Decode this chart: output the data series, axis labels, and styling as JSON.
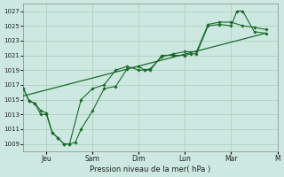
{
  "bg_color": "#cce8e0",
  "grid_color": "#aaccbb",
  "line_color": "#1a6b2a",
  "xlabel": "Pression niveau de la mer( hPa )",
  "ylim": [
    1008.0,
    1028.0
  ],
  "yticks": [
    1009,
    1011,
    1013,
    1015,
    1017,
    1019,
    1021,
    1023,
    1025,
    1027
  ],
  "xlim": [
    0,
    22
  ],
  "xtick_positions": [
    2.0,
    6.0,
    10.0,
    14.0,
    18.0,
    22.0
  ],
  "xtick_labels": [
    "Jeu",
    "Sam",
    "Dim",
    "Lun",
    "Mar",
    "M"
  ],
  "series": [
    {
      "x": [
        0,
        0.5,
        1,
        1.5,
        2,
        2.5,
        3,
        3.5,
        4,
        4.5,
        5,
        6,
        7,
        8,
        9,
        10,
        10.5,
        11,
        12,
        13,
        14,
        14.5,
        15,
        16,
        17,
        18,
        18.5,
        19,
        20,
        21
      ],
      "y": [
        1016.5,
        1014.8,
        1014.5,
        1013.0,
        1013.0,
        1010.5,
        1009.8,
        1009.0,
        1009.0,
        1009.2,
        1011.0,
        1013.5,
        1016.5,
        1016.8,
        1019.2,
        1019.5,
        1019.0,
        1019.0,
        1021.0,
        1021.0,
        1021.0,
        1021.2,
        1021.2,
        1025.0,
        1025.2,
        1025.0,
        1027.0,
        1027.0,
        1024.2,
        1024.0
      ],
      "lw": 0.8,
      "marker": "D",
      "ms": 1.8
    },
    {
      "x": [
        0,
        0.5,
        1,
        1.5,
        2,
        2.5,
        3,
        3.5,
        4,
        5,
        6,
        7,
        8,
        9,
        10,
        10.5,
        11,
        12,
        13,
        14,
        15,
        16,
        17,
        18,
        19,
        20,
        21
      ],
      "y": [
        1016.5,
        1014.8,
        1014.5,
        1013.5,
        1013.2,
        1010.5,
        1009.8,
        1009.0,
        1009.0,
        1015.0,
        1016.5,
        1017.0,
        1019.0,
        1019.5,
        1019.0,
        1019.0,
        1019.2,
        1020.8,
        1021.2,
        1021.5,
        1021.5,
        1025.2,
        1025.5,
        1025.5,
        1025.0,
        1024.8,
        1024.5
      ],
      "lw": 0.8,
      "marker": "D",
      "ms": 1.8
    },
    {
      "x": [
        0,
        21
      ],
      "y": [
        1015.5,
        1024.0
      ],
      "lw": 0.9,
      "marker": null,
      "ms": 0
    }
  ]
}
